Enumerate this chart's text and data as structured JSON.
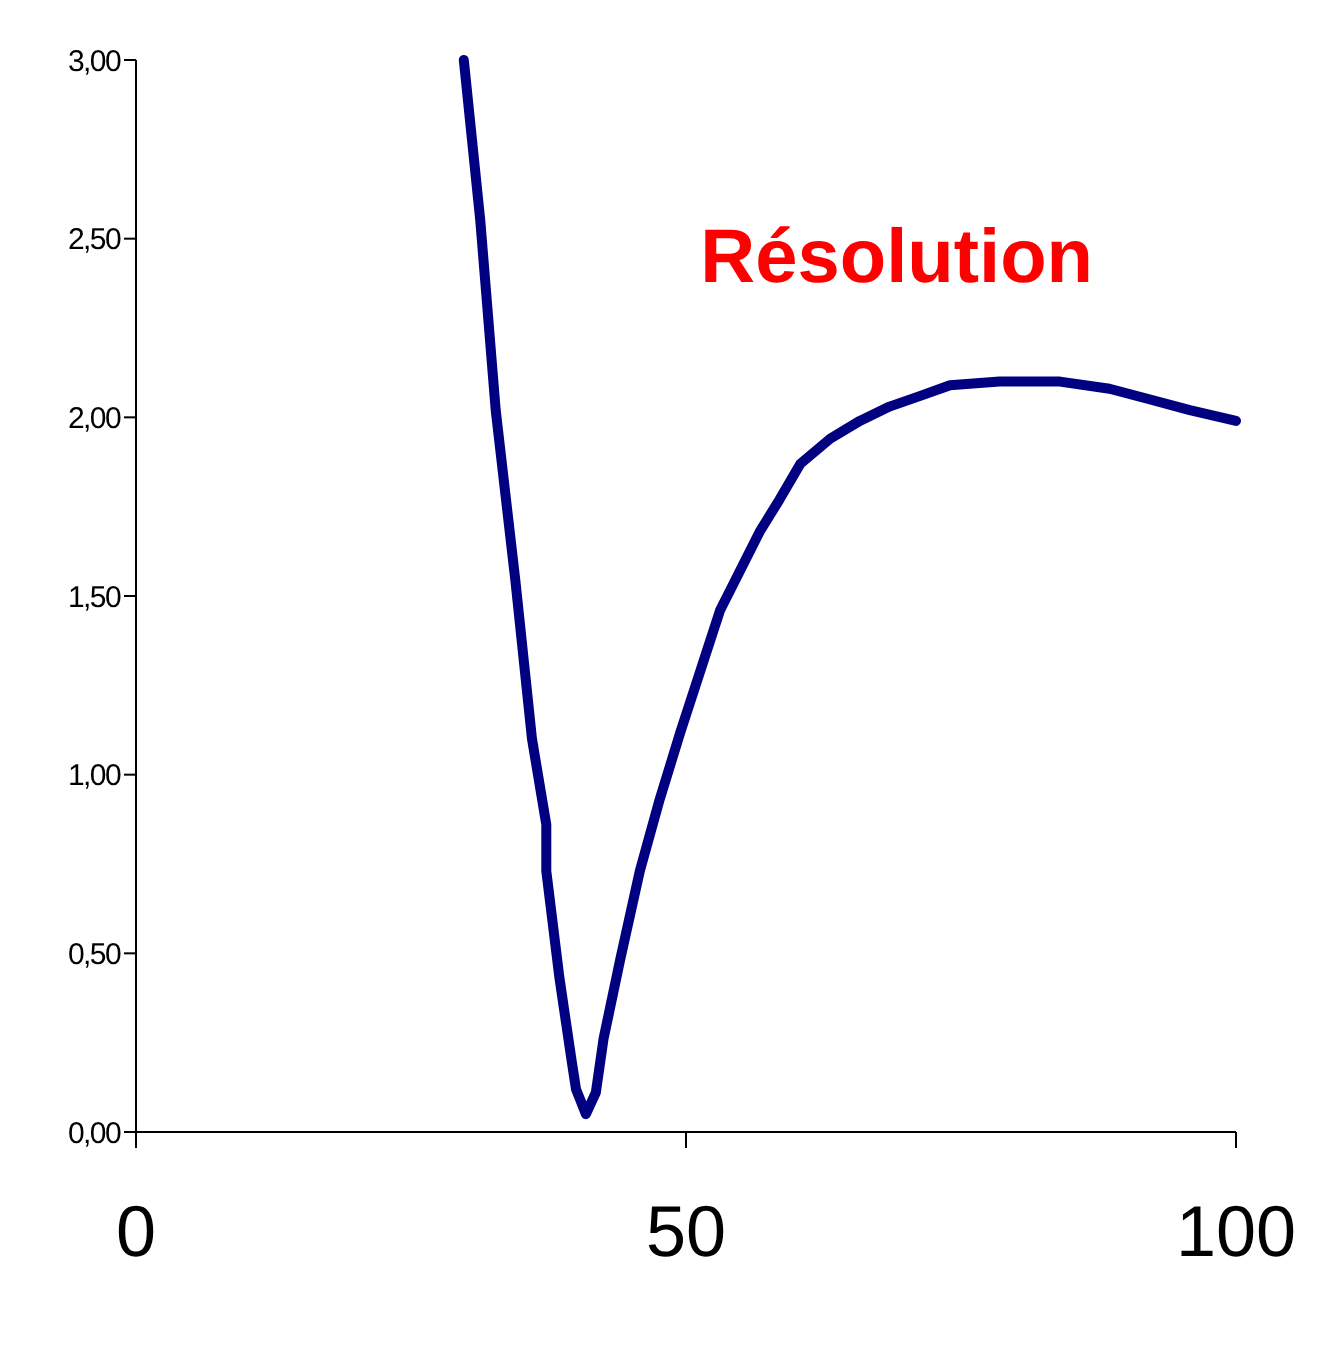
{
  "chart_data": {
    "type": "line",
    "title": "Résolution",
    "x": [
      29.8,
      31.3,
      32.7,
      34.5,
      36.0,
      37.3,
      37.3,
      38.5,
      39.6,
      40.0,
      40.9,
      41.8,
      42.5,
      44.0,
      45.8,
      47.6,
      49.5,
      51.3,
      53.1,
      54.9,
      56.7,
      58.5,
      60.4,
      63.1,
      65.8,
      68.5,
      71.3,
      74.0,
      78.5,
      84.0,
      88.5,
      92.2,
      95.8,
      100
    ],
    "series": [
      {
        "color": "#000080",
        "values": [
          3.0,
          2.55,
          2.02,
          1.54,
          1.1,
          0.86,
          0.73,
          0.43,
          0.2,
          0.12,
          0.05,
          0.11,
          0.26,
          0.48,
          0.73,
          0.93,
          1.12,
          1.29,
          1.46,
          1.57,
          1.68,
          1.77,
          1.87,
          1.94,
          1.99,
          2.03,
          2.06,
          2.09,
          2.1,
          2.1,
          2.08,
          2.05,
          2.02,
          1.99
        ]
      }
    ],
    "xlim": [
      0,
      100
    ],
    "xticks": [
      0,
      50,
      100
    ],
    "ylim": [
      0,
      3
    ],
    "yticks": [
      {
        "value": 0,
        "label": "0,00"
      },
      {
        "value": 0.5,
        "label": "0,50"
      },
      {
        "value": 1,
        "label": "1,00"
      },
      {
        "value": 1.5,
        "label": "1,50"
      },
      {
        "value": 2,
        "label": "2,00"
      },
      {
        "value": 2.5,
        "label": "2,50"
      },
      {
        "value": 3,
        "label": "3,00"
      }
    ],
    "grid": false,
    "marker": "none",
    "line_style": "solid"
  }
}
